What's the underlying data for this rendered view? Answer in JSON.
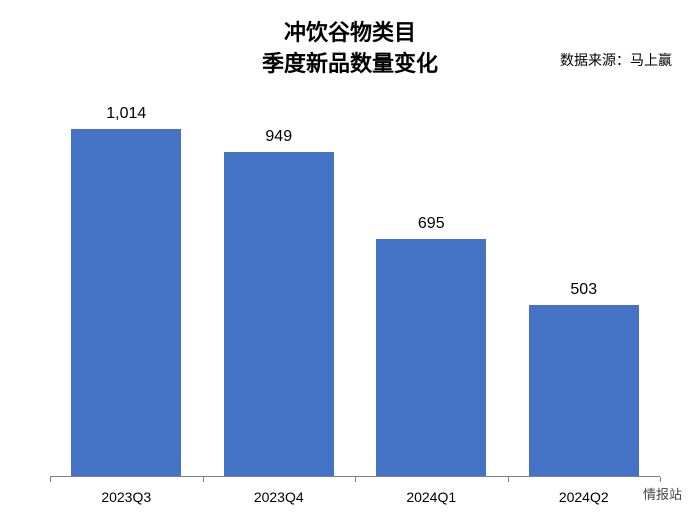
{
  "chart": {
    "type": "bar",
    "title_line1": "冲饮谷物类目",
    "title_line2": "季度新品数量变化",
    "title_fontsize": 22,
    "title_color": "#000000",
    "source_label": "数据来源：马上赢",
    "source_fontsize": 14,
    "categories": [
      "2023Q3",
      "2023Q4",
      "2024Q1",
      "2024Q2"
    ],
    "values": [
      1014,
      949,
      695,
      503
    ],
    "value_labels": [
      "1,014",
      "949",
      "695",
      "503"
    ],
    "bar_color": "#4472c4",
    "bar_width_ratio": 0.72,
    "background_color": "#ffffff",
    "axis_color": "#808080",
    "value_label_fontsize": 16,
    "x_label_fontsize": 14,
    "y_max": 1100,
    "y_min": 0,
    "grid": false
  },
  "watermark": "情报站"
}
